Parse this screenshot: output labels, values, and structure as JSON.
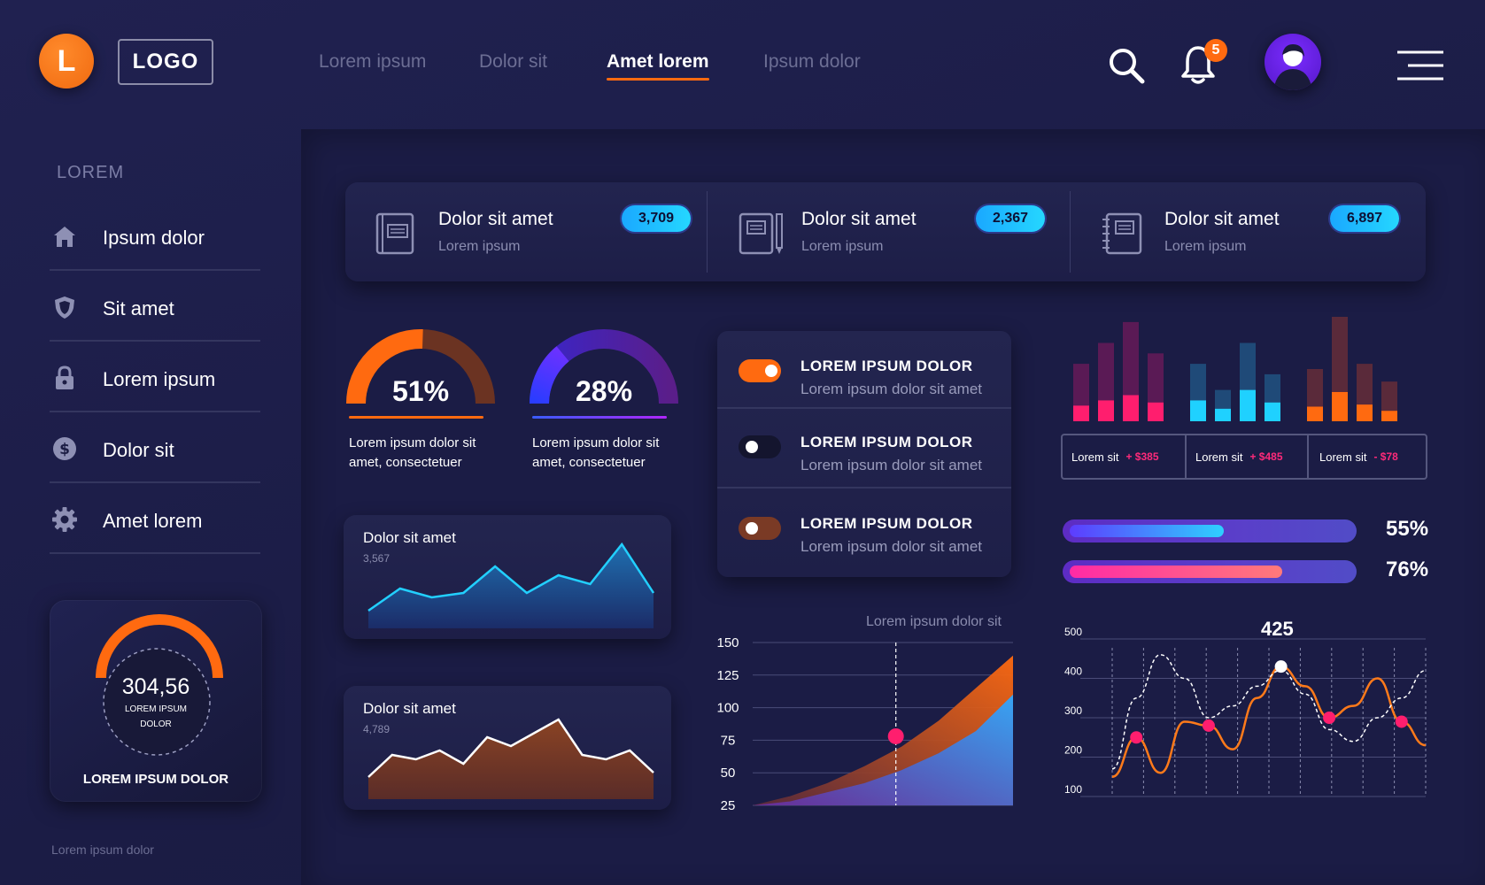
{
  "header": {
    "logo_letter": "L",
    "logo_text": "LOGO",
    "nav": [
      "Lorem ipsum",
      "Dolor sit",
      "Amet lorem",
      "Ipsum dolor"
    ],
    "active_nav": "Amet lorem",
    "notification_count": "5"
  },
  "sidebar": {
    "title": "LOREM",
    "items": [
      {
        "label": "Ipsum dolor",
        "icon": "home-icon"
      },
      {
        "label": "Sit amet",
        "icon": "shield-icon"
      },
      {
        "label": "Lorem ipsum",
        "icon": "lock-icon"
      },
      {
        "label": "Dolor sit",
        "icon": "dollar-icon"
      },
      {
        "label": "Amet lorem",
        "icon": "gear-icon"
      }
    ],
    "widget": {
      "value": "304,56",
      "caption_line1": "LOREM IPSUM",
      "caption_line2": "DOLOR",
      "title": "LOREM IPSUM DOLOR"
    },
    "footer": "Lorem ipsum dolor"
  },
  "stats": [
    {
      "title": "Dolor sit amet",
      "sub": "Lorem ipsum",
      "value": "3,709",
      "icon": "book-icon"
    },
    {
      "title": "Dolor sit amet",
      "sub": "Lorem ipsum",
      "value": "2,367",
      "icon": "notebook-pencil-icon"
    },
    {
      "title": "Dolor sit amet",
      "sub": "Lorem ipsum",
      "value": "6,897",
      "icon": "spiral-notebook-icon"
    }
  ],
  "gauges": [
    {
      "percent": "51%",
      "value": 0.51,
      "caption_line1": "Lorem ipsum dolor sit",
      "caption_line2": "amet, consectetuer",
      "color": "#ff6a10"
    },
    {
      "percent": "28%",
      "value": 0.28,
      "caption_line1": "Lorem ipsum dolor sit",
      "caption_line2": "amet, consectetuer",
      "color": "#6a2cff"
    }
  ],
  "mini_charts": [
    {
      "title": "Dolor sit amet",
      "value": "3,567",
      "points": [
        20,
        45,
        35,
        40,
        70,
        40,
        60,
        50,
        95,
        40
      ]
    },
    {
      "title": "Dolor sit amet",
      "value": "4,789",
      "points": [
        25,
        50,
        45,
        55,
        40,
        70,
        60,
        75,
        90,
        50,
        45,
        55,
        30
      ]
    }
  ],
  "toggles": [
    {
      "title": "LOREM IPSUM DOLOR",
      "sub": "Lorem ipsum dolor sit amet",
      "state": "on-orange"
    },
    {
      "title": "LOREM IPSUM DOLOR",
      "sub": "Lorem ipsum dolor sit amet",
      "state": "off"
    },
    {
      "title": "LOREM IPSUM DOLOR",
      "sub": "Lorem ipsum dolor sit amet",
      "state": "on-brown"
    }
  ],
  "bar_groups": {
    "legend": [
      {
        "label": "Lorem sit",
        "value": "+ $385"
      },
      {
        "label": "Lorem sit",
        "value": "+ $485"
      },
      {
        "label": "Lorem sit",
        "value": "- $78"
      }
    ],
    "groups": [
      {
        "colors": [
          "#5a1a55",
          "#ff1e6e"
        ],
        "bars": [
          [
            0.55,
            0.15
          ],
          [
            0.75,
            0.2
          ],
          [
            0.95,
            0.25
          ],
          [
            0.65,
            0.18
          ]
        ]
      },
      {
        "colors": [
          "#1f4a78",
          "#1fd1ff"
        ],
        "bars": [
          [
            0.55,
            0.2
          ],
          [
            0.3,
            0.12
          ],
          [
            0.75,
            0.3
          ],
          [
            0.45,
            0.18
          ]
        ]
      },
      {
        "colors": [
          "#5a2a3a",
          "#ff6a10"
        ],
        "bars": [
          [
            0.5,
            0.14
          ],
          [
            1.0,
            0.28
          ],
          [
            0.55,
            0.16
          ],
          [
            0.38,
            0.1
          ]
        ]
      }
    ]
  },
  "progress": [
    {
      "percent": "55%",
      "value": 0.55,
      "fill": [
        "#5d3cff",
        "#2ed0ff"
      ]
    },
    {
      "percent": "76%",
      "value": 0.76,
      "fill": [
        "#ff2aa5",
        "#ff7a7a"
      ]
    }
  ],
  "chart_data": [
    {
      "type": "area",
      "title": "Lorem ipsum dolor sit",
      "y_ticks": [
        "150",
        "125",
        "100",
        "75",
        "50",
        "25"
      ],
      "ylim": [
        25,
        150
      ],
      "series": [
        {
          "values": [
            25,
            32,
            42,
            55,
            70,
            90,
            115,
            140
          ]
        },
        {
          "values": [
            25,
            28,
            35,
            42,
            52,
            65,
            82,
            110
          ]
        }
      ],
      "marker": {
        "x_fraction": 0.55,
        "y": 78
      }
    },
    {
      "type": "line",
      "title": "",
      "y_ticks": [
        "500",
        "400",
        "300",
        "200",
        "100"
      ],
      "ylim": [
        100,
        500
      ],
      "highlight": "425",
      "series": [
        {
          "values": [
            150,
            250,
            160,
            290,
            280,
            220,
            350,
            430,
            380,
            300,
            330,
            400,
            290,
            230
          ]
        },
        {
          "values": [
            170,
            350,
            460,
            400,
            300,
            330,
            380,
            420,
            360,
            270,
            240,
            300,
            350,
            420
          ]
        }
      ]
    }
  ],
  "colors": {
    "accent": "#ff6a10",
    "background": "#1c1d44",
    "cyan": "#22c7ff",
    "pink": "#ff1e6e"
  }
}
